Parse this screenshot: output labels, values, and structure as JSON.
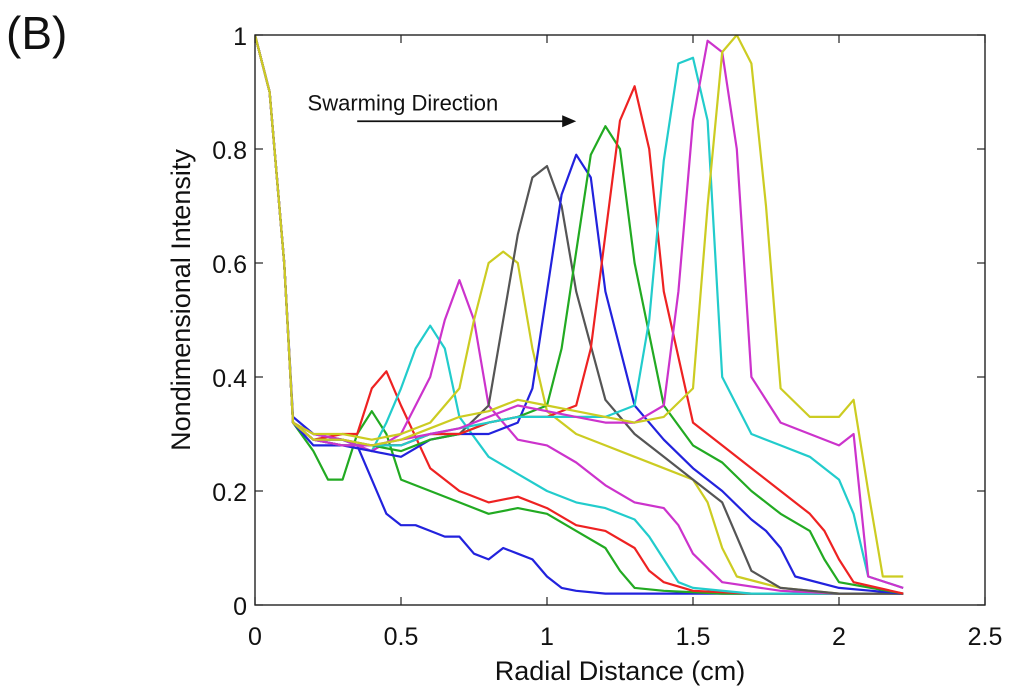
{
  "panel_label": "(B)",
  "chart_data": {
    "type": "line",
    "title": "",
    "xlabel": "Radial Distance (cm)",
    "ylabel": "Nondimensional Intensity",
    "xlim": [
      0,
      2.5
    ],
    "ylim": [
      0,
      1
    ],
    "xticks": [
      0,
      0.5,
      1,
      1.5,
      2,
      2.5
    ],
    "xtick_labels": [
      "0",
      "0.5",
      "1",
      "1.5",
      "2",
      "2.5"
    ],
    "yticks": [
      0,
      0.2,
      0.4,
      0.6,
      0.8,
      1
    ],
    "ytick_labels": [
      "0",
      "0.2",
      "0.4",
      "0.6",
      "0.8",
      "1"
    ],
    "grid": false,
    "legend": "none",
    "annotation": {
      "text": "Swarming Direction",
      "arrow_from": [
        0.35,
        0.875
      ],
      "arrow_to": [
        1.1,
        0.875
      ]
    },
    "series": [
      {
        "color": "#2222dd",
        "x": [
          0,
          0.05,
          0.1,
          0.13,
          0.2,
          0.3,
          0.35,
          0.4,
          0.45,
          0.5,
          0.55,
          0.6,
          0.65,
          0.7,
          0.75,
          0.8,
          0.85,
          0.9,
          0.95,
          1.0,
          1.05,
          1.1,
          1.2,
          1.5,
          2.0,
          2.22
        ],
        "y": [
          1,
          0.9,
          0.6,
          0.33,
          0.3,
          0.29,
          0.28,
          0.22,
          0.16,
          0.14,
          0.14,
          0.13,
          0.12,
          0.12,
          0.09,
          0.08,
          0.1,
          0.09,
          0.08,
          0.05,
          0.03,
          0.025,
          0.02,
          0.02,
          0.02,
          0.02
        ]
      },
      {
        "color": "#22aa22",
        "x": [
          0,
          0.05,
          0.1,
          0.13,
          0.2,
          0.25,
          0.3,
          0.35,
          0.4,
          0.45,
          0.5,
          0.6,
          0.7,
          0.8,
          0.9,
          1.0,
          1.1,
          1.2,
          1.25,
          1.3,
          1.4,
          1.6,
          2.0,
          2.22
        ],
        "y": [
          1,
          0.9,
          0.6,
          0.32,
          0.27,
          0.22,
          0.22,
          0.3,
          0.34,
          0.3,
          0.22,
          0.2,
          0.18,
          0.16,
          0.17,
          0.16,
          0.13,
          0.1,
          0.06,
          0.03,
          0.025,
          0.02,
          0.02,
          0.02
        ]
      },
      {
        "color": "#ee2222",
        "x": [
          0,
          0.05,
          0.1,
          0.13,
          0.2,
          0.3,
          0.35,
          0.4,
          0.45,
          0.5,
          0.6,
          0.7,
          0.8,
          0.9,
          1.0,
          1.1,
          1.2,
          1.3,
          1.35,
          1.4,
          1.5,
          1.7,
          2.0,
          2.22
        ],
        "y": [
          1,
          0.9,
          0.6,
          0.32,
          0.29,
          0.3,
          0.3,
          0.38,
          0.41,
          0.35,
          0.24,
          0.2,
          0.18,
          0.19,
          0.17,
          0.14,
          0.13,
          0.1,
          0.06,
          0.04,
          0.025,
          0.02,
          0.02,
          0.02
        ]
      },
      {
        "color": "#22cccc",
        "x": [
          0,
          0.05,
          0.1,
          0.13,
          0.2,
          0.3,
          0.4,
          0.45,
          0.5,
          0.55,
          0.6,
          0.65,
          0.7,
          0.8,
          0.9,
          1.0,
          1.1,
          1.2,
          1.3,
          1.35,
          1.4,
          1.45,
          1.5,
          1.7,
          2.0,
          2.22
        ],
        "y": [
          1,
          0.9,
          0.6,
          0.32,
          0.29,
          0.29,
          0.27,
          0.32,
          0.38,
          0.45,
          0.49,
          0.45,
          0.33,
          0.26,
          0.23,
          0.2,
          0.18,
          0.17,
          0.15,
          0.12,
          0.08,
          0.04,
          0.03,
          0.02,
          0.02,
          0.02
        ]
      },
      {
        "color": "#cc33cc",
        "x": [
          0,
          0.05,
          0.1,
          0.13,
          0.2,
          0.3,
          0.4,
          0.5,
          0.6,
          0.65,
          0.7,
          0.75,
          0.8,
          0.9,
          1.0,
          1.1,
          1.2,
          1.3,
          1.4,
          1.45,
          1.5,
          1.6,
          1.8,
          2.0,
          2.22
        ],
        "y": [
          1,
          0.9,
          0.6,
          0.32,
          0.3,
          0.29,
          0.27,
          0.3,
          0.4,
          0.5,
          0.57,
          0.5,
          0.35,
          0.29,
          0.28,
          0.25,
          0.21,
          0.18,
          0.17,
          0.14,
          0.09,
          0.04,
          0.025,
          0.02,
          0.02
        ]
      },
      {
        "color": "#cccc22",
        "x": [
          0,
          0.05,
          0.1,
          0.13,
          0.2,
          0.3,
          0.4,
          0.5,
          0.6,
          0.7,
          0.75,
          0.8,
          0.85,
          0.9,
          0.95,
          1.0,
          1.1,
          1.2,
          1.3,
          1.4,
          1.5,
          1.55,
          1.6,
          1.65,
          1.8,
          2.0,
          2.22
        ],
        "y": [
          1,
          0.9,
          0.6,
          0.32,
          0.3,
          0.3,
          0.29,
          0.3,
          0.32,
          0.38,
          0.5,
          0.6,
          0.62,
          0.6,
          0.45,
          0.34,
          0.3,
          0.28,
          0.26,
          0.24,
          0.22,
          0.18,
          0.1,
          0.05,
          0.03,
          0.02,
          0.02
        ]
      },
      {
        "color": "#555555",
        "x": [
          0,
          0.05,
          0.1,
          0.13,
          0.2,
          0.3,
          0.4,
          0.5,
          0.6,
          0.7,
          0.8,
          0.85,
          0.9,
          0.95,
          1.0,
          1.05,
          1.1,
          1.2,
          1.3,
          1.4,
          1.5,
          1.6,
          1.65,
          1.7,
          1.8,
          2.0,
          2.22
        ],
        "y": [
          1,
          0.9,
          0.6,
          0.32,
          0.29,
          0.29,
          0.28,
          0.28,
          0.3,
          0.3,
          0.35,
          0.5,
          0.65,
          0.75,
          0.77,
          0.7,
          0.55,
          0.36,
          0.3,
          0.26,
          0.22,
          0.18,
          0.12,
          0.06,
          0.03,
          0.02,
          0.02
        ]
      },
      {
        "color": "#2222dd",
        "x": [
          0,
          0.05,
          0.1,
          0.13,
          0.2,
          0.3,
          0.4,
          0.5,
          0.6,
          0.7,
          0.8,
          0.9,
          0.95,
          1.0,
          1.05,
          1.1,
          1.15,
          1.2,
          1.3,
          1.4,
          1.5,
          1.6,
          1.7,
          1.75,
          1.8,
          1.85,
          2.0,
          2.22
        ],
        "y": [
          1,
          0.9,
          0.6,
          0.32,
          0.28,
          0.28,
          0.27,
          0.26,
          0.29,
          0.3,
          0.3,
          0.32,
          0.38,
          0.55,
          0.72,
          0.79,
          0.75,
          0.55,
          0.35,
          0.29,
          0.24,
          0.2,
          0.15,
          0.13,
          0.1,
          0.05,
          0.03,
          0.02
        ]
      },
      {
        "color": "#22aa22",
        "x": [
          0,
          0.05,
          0.1,
          0.13,
          0.2,
          0.3,
          0.4,
          0.5,
          0.6,
          0.7,
          0.8,
          0.9,
          1.0,
          1.05,
          1.1,
          1.15,
          1.2,
          1.25,
          1.3,
          1.4,
          1.5,
          1.6,
          1.7,
          1.8,
          1.9,
          1.95,
          2.0,
          2.22
        ],
        "y": [
          1,
          0.9,
          0.6,
          0.32,
          0.29,
          0.28,
          0.28,
          0.27,
          0.29,
          0.3,
          0.32,
          0.33,
          0.35,
          0.45,
          0.62,
          0.79,
          0.84,
          0.8,
          0.6,
          0.35,
          0.28,
          0.25,
          0.2,
          0.16,
          0.13,
          0.08,
          0.04,
          0.02
        ]
      },
      {
        "color": "#ee2222",
        "x": [
          0,
          0.05,
          0.1,
          0.13,
          0.2,
          0.3,
          0.4,
          0.5,
          0.6,
          0.7,
          0.8,
          0.9,
          1.0,
          1.1,
          1.15,
          1.2,
          1.25,
          1.3,
          1.35,
          1.4,
          1.5,
          1.6,
          1.7,
          1.8,
          1.9,
          1.95,
          2.0,
          2.05,
          2.22
        ],
        "y": [
          1,
          0.9,
          0.6,
          0.32,
          0.29,
          0.28,
          0.28,
          0.28,
          0.3,
          0.3,
          0.32,
          0.33,
          0.33,
          0.35,
          0.45,
          0.65,
          0.85,
          0.91,
          0.8,
          0.55,
          0.32,
          0.28,
          0.24,
          0.2,
          0.16,
          0.13,
          0.08,
          0.04,
          0.02
        ]
      },
      {
        "color": "#22cccc",
        "x": [
          0,
          0.05,
          0.1,
          0.13,
          0.2,
          0.3,
          0.4,
          0.5,
          0.6,
          0.7,
          0.8,
          0.9,
          1.0,
          1.1,
          1.2,
          1.3,
          1.35,
          1.4,
          1.45,
          1.5,
          1.55,
          1.6,
          1.7,
          1.8,
          1.9,
          2.0,
          2.05,
          2.1,
          2.22
        ],
        "y": [
          1,
          0.9,
          0.6,
          0.32,
          0.29,
          0.28,
          0.28,
          0.28,
          0.3,
          0.31,
          0.32,
          0.33,
          0.33,
          0.33,
          0.33,
          0.35,
          0.5,
          0.78,
          0.95,
          0.96,
          0.85,
          0.4,
          0.3,
          0.28,
          0.26,
          0.22,
          0.16,
          0.05,
          0.03
        ]
      },
      {
        "color": "#cc33cc",
        "x": [
          0,
          0.05,
          0.1,
          0.13,
          0.2,
          0.3,
          0.4,
          0.5,
          0.6,
          0.7,
          0.8,
          0.9,
          1.0,
          1.1,
          1.2,
          1.3,
          1.4,
          1.45,
          1.5,
          1.55,
          1.6,
          1.65,
          1.7,
          1.8,
          1.9,
          2.0,
          2.05,
          2.1,
          2.22
        ],
        "y": [
          1,
          0.9,
          0.6,
          0.32,
          0.29,
          0.28,
          0.28,
          0.29,
          0.3,
          0.31,
          0.33,
          0.35,
          0.34,
          0.33,
          0.32,
          0.32,
          0.35,
          0.55,
          0.85,
          0.99,
          0.97,
          0.8,
          0.4,
          0.32,
          0.3,
          0.28,
          0.3,
          0.05,
          0.03
        ]
      },
      {
        "color": "#cccc22",
        "x": [
          0,
          0.05,
          0.1,
          0.13,
          0.2,
          0.3,
          0.4,
          0.5,
          0.6,
          0.7,
          0.8,
          0.9,
          1.0,
          1.1,
          1.2,
          1.3,
          1.4,
          1.5,
          1.55,
          1.6,
          1.65,
          1.7,
          1.75,
          1.8,
          1.9,
          2.0,
          2.05,
          2.1,
          2.15,
          2.22
        ],
        "y": [
          1,
          0.9,
          0.6,
          0.32,
          0.29,
          0.29,
          0.28,
          0.29,
          0.31,
          0.33,
          0.34,
          0.36,
          0.35,
          0.34,
          0.33,
          0.32,
          0.33,
          0.38,
          0.7,
          0.97,
          1.0,
          0.95,
          0.7,
          0.38,
          0.33,
          0.33,
          0.36,
          0.2,
          0.05,
          0.05
        ]
      }
    ]
  }
}
